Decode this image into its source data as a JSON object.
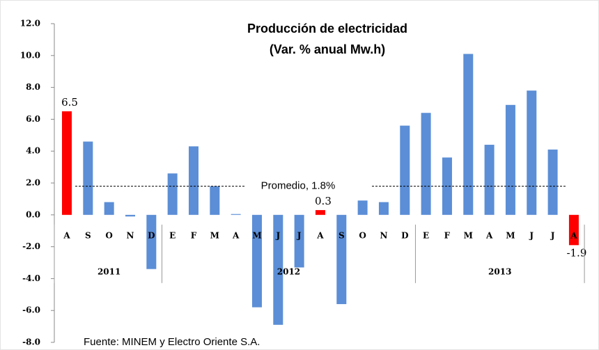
{
  "chart_data": {
    "type": "bar",
    "title": "Producción de electricidad",
    "subtitle": "(Var. % anual Mw.h)",
    "source": "Fuente: MINEM y Electro Oriente S.A.",
    "categories": [
      "A",
      "S",
      "O",
      "N",
      "D",
      "E",
      "F",
      "M",
      "A",
      "M",
      "J",
      "J",
      "A",
      "S",
      "O",
      "N",
      "D",
      "E",
      "F",
      "M",
      "A",
      "M",
      "J",
      "J",
      "A"
    ],
    "values": [
      6.5,
      4.6,
      0.8,
      -0.1,
      -3.4,
      2.6,
      4.3,
      1.8,
      0.05,
      -5.8,
      -6.9,
      -3.3,
      0.3,
      -5.6,
      0.9,
      0.8,
      5.6,
      6.4,
      3.6,
      10.1,
      4.4,
      6.9,
      7.8,
      4.1,
      -1.9
    ],
    "value_labels": [
      "6.5",
      null,
      null,
      null,
      null,
      null,
      null,
      null,
      null,
      null,
      null,
      null,
      "0.3",
      null,
      null,
      null,
      null,
      null,
      null,
      null,
      null,
      null,
      null,
      null,
      "-1.9"
    ],
    "colors": [
      "#ff0000",
      "#5b8ed6",
      "#5b8ed6",
      "#5b8ed6",
      "#5b8ed6",
      "#5b8ed6",
      "#5b8ed6",
      "#5b8ed6",
      "#5b8ed6",
      "#5b8ed6",
      "#5b8ed6",
      "#5b8ed6",
      "#ff0000",
      "#5b8ed6",
      "#5b8ed6",
      "#5b8ed6",
      "#5b8ed6",
      "#5b8ed6",
      "#5b8ed6",
      "#5b8ed6",
      "#5b8ed6",
      "#5b8ed6",
      "#5b8ed6",
      "#5b8ed6",
      "#ff0000"
    ],
    "groups": [
      {
        "label": "2011",
        "start": 0,
        "end": 4
      },
      {
        "label": "2012",
        "start": 5,
        "end": 16
      },
      {
        "label": "2013",
        "start": 17,
        "end": 24
      }
    ],
    "average": {
      "value": 1.8,
      "label": "Promedio, 1.8%"
    },
    "ylim": [
      -8,
      12
    ],
    "yticks": [
      {
        "value": -8,
        "label": "-8.0"
      },
      {
        "value": -6,
        "label": "-6.0"
      },
      {
        "value": -4,
        "label": "-4.0"
      },
      {
        "value": -2,
        "label": "-2.0"
      },
      {
        "value": 0,
        "label": "0.0"
      },
      {
        "value": 2,
        "label": "2.0"
      },
      {
        "value": 4,
        "label": "4.0"
      },
      {
        "value": 6,
        "label": "6.0"
      },
      {
        "value": 8,
        "label": "8.0"
      },
      {
        "value": 10,
        "label": "10.0"
      },
      {
        "value": 12,
        "label": "12.0"
      }
    ],
    "grid": false
  }
}
